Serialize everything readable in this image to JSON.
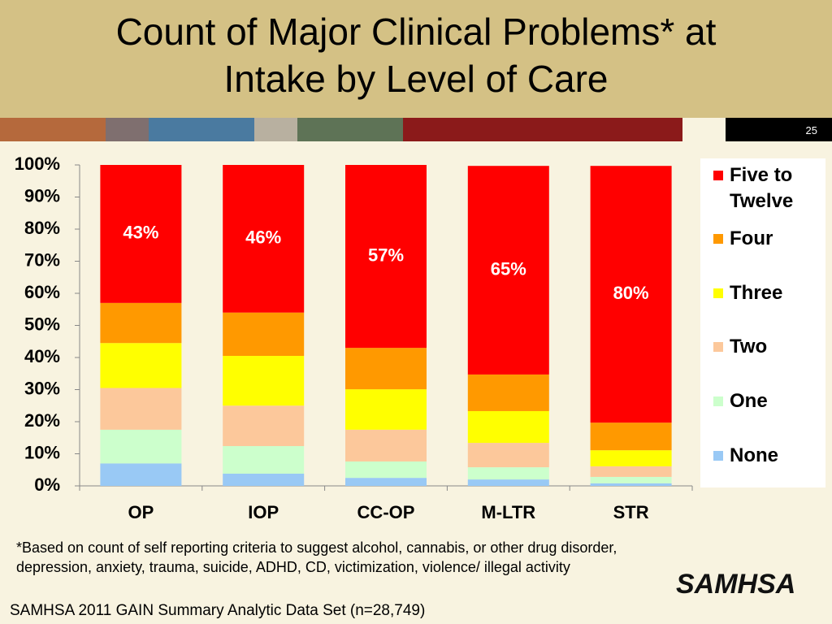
{
  "slide_number": "25",
  "chart_data": {
    "type": "stacked_bar",
    "title": "Count of Major Clinical Problems* at Intake by Level of Care",
    "categories": [
      "OP",
      "IOP",
      "CC-OP",
      "M-LTR",
      "STR"
    ],
    "series": [
      {
        "name": "None",
        "color": "#99c9f5",
        "values": [
          7,
          3.8,
          2.5,
          2,
          0.8
        ]
      },
      {
        "name": "One",
        "color": "#ccffcc",
        "values": [
          10.5,
          8.6,
          5.1,
          3.8,
          2
        ]
      },
      {
        "name": "Two",
        "color": "#fcc89b",
        "values": [
          13,
          12.6,
          9.9,
          7.6,
          3.3
        ]
      },
      {
        "name": "Three",
        "color": "#ffff00",
        "values": [
          14,
          15.5,
          12.6,
          9.9,
          5
        ]
      },
      {
        "name": "Four",
        "color": "#ff9900",
        "values": [
          12.5,
          13.5,
          12.9,
          11.4,
          8.6
        ]
      },
      {
        "name": "Five to Twelve",
        "color": "#ff0000",
        "values": [
          43,
          46,
          57,
          65,
          80
        ],
        "value_labels": [
          "43%",
          "46%",
          "57%",
          "65%",
          "80%"
        ]
      }
    ],
    "ylim": [
      0,
      100
    ],
    "yticks": [
      {
        "value": 0,
        "label": "0%"
      },
      {
        "value": 10,
        "label": "10%"
      },
      {
        "value": 20,
        "label": "20%"
      },
      {
        "value": 30,
        "label": "30%"
      },
      {
        "value": 40,
        "label": "40%"
      },
      {
        "value": 50,
        "label": "50%"
      },
      {
        "value": 60,
        "label": "60%"
      },
      {
        "value": 70,
        "label": "70%"
      },
      {
        "value": 80,
        "label": "80%"
      },
      {
        "value": 90,
        "label": "90%"
      },
      {
        "value": 100,
        "label": "100%"
      }
    ],
    "legend": "right",
    "footnote": "*Based on count of self reporting criteria to suggest alcohol, cannabis, or other drug disorder, depression, anxiety, trauma, suicide, ADHD, CD, victimization, violence/ illegal activity",
    "source": "SAMHSA 2011 GAIN Summary Analytic Data Set (n=28,749)"
  },
  "logo": "SAMHSA"
}
